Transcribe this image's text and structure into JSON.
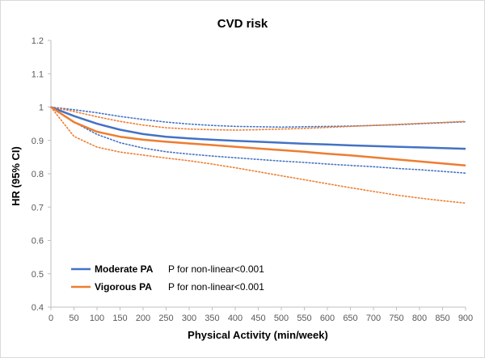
{
  "chart_data": {
    "type": "line",
    "title": "CVD risk",
    "xlabel": "Physical Activity (min/week)",
    "ylabel": "HR (95% CI)",
    "xlim": [
      0,
      900
    ],
    "ylim": [
      0.4,
      1.2
    ],
    "xticks": [
      0,
      50,
      100,
      150,
      200,
      250,
      300,
      350,
      400,
      450,
      500,
      550,
      600,
      650,
      700,
      750,
      800,
      850,
      900
    ],
    "yticks": [
      "0.4",
      "0.5",
      "0.6",
      "0.7",
      "0.8",
      "0.9",
      "1",
      "1.1",
      "1.2"
    ],
    "x": [
      0,
      50,
      100,
      150,
      200,
      250,
      300,
      350,
      400,
      450,
      500,
      550,
      600,
      650,
      700,
      750,
      800,
      850,
      900
    ],
    "grid": false,
    "legend_position": "bottom-left",
    "series": [
      {
        "name": "Moderate PA",
        "annotation": "P for non-linear<0.001",
        "color": "#4472c4",
        "values": [
          1.0,
          0.973,
          0.95,
          0.932,
          0.919,
          0.911,
          0.906,
          0.902,
          0.899,
          0.896,
          0.893,
          0.89,
          0.888,
          0.885,
          0.883,
          0.881,
          0.879,
          0.877,
          0.875
        ],
        "lower": [
          1.0,
          0.955,
          0.918,
          0.893,
          0.877,
          0.866,
          0.859,
          0.853,
          0.848,
          0.843,
          0.838,
          0.834,
          0.829,
          0.825,
          0.821,
          0.816,
          0.812,
          0.807,
          0.802
        ],
        "upper": [
          1.0,
          0.992,
          0.983,
          0.972,
          0.963,
          0.955,
          0.949,
          0.945,
          0.942,
          0.941,
          0.94,
          0.941,
          0.942,
          0.943,
          0.945,
          0.947,
          0.95,
          0.953,
          0.956
        ]
      },
      {
        "name": "Vigorous PA",
        "annotation": "P for non-linear<0.001",
        "color": "#ed7d31",
        "values": [
          1.0,
          0.955,
          0.926,
          0.911,
          0.902,
          0.896,
          0.891,
          0.886,
          0.881,
          0.876,
          0.871,
          0.866,
          0.86,
          0.855,
          0.849,
          0.843,
          0.837,
          0.831,
          0.825
        ],
        "lower": [
          1.0,
          0.912,
          0.88,
          0.865,
          0.856,
          0.847,
          0.839,
          0.829,
          0.818,
          0.806,
          0.794,
          0.782,
          0.77,
          0.758,
          0.747,
          0.736,
          0.727,
          0.719,
          0.712
        ],
        "upper": [
          1.0,
          0.987,
          0.971,
          0.957,
          0.946,
          0.938,
          0.934,
          0.932,
          0.931,
          0.932,
          0.934,
          0.936,
          0.939,
          0.942,
          0.945,
          0.948,
          0.951,
          0.954,
          0.957
        ]
      }
    ]
  }
}
